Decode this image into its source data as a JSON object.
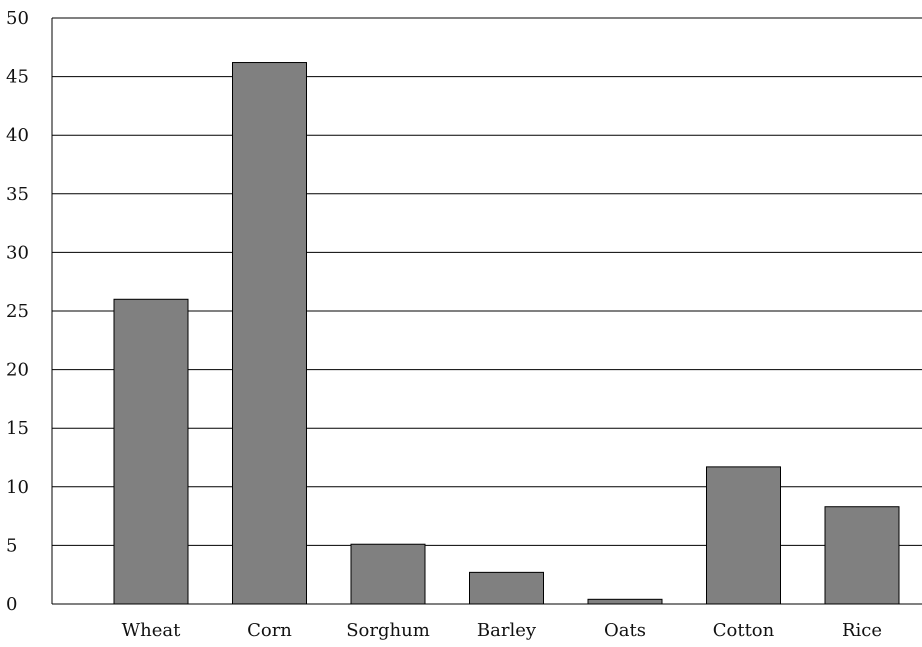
{
  "chart_data": {
    "type": "bar",
    "title": "",
    "xlabel": "",
    "ylabel": "",
    "categories": [
      "Wheat",
      "Corn",
      "Sorghum",
      "Barley",
      "Oats",
      "Cotton",
      "Rice"
    ],
    "values": [
      26,
      46.2,
      5.1,
      2.7,
      0.4,
      11.7,
      8.3
    ],
    "ylim": [
      0,
      50
    ],
    "yticks": [
      0,
      5,
      10,
      15,
      20,
      25,
      30,
      35,
      40,
      45,
      50
    ],
    "grid": true,
    "legend": "none",
    "colors": {
      "bar_fill": "#808080",
      "bar_stroke": "#000000",
      "grid": "#000000",
      "text": "#111111"
    }
  }
}
